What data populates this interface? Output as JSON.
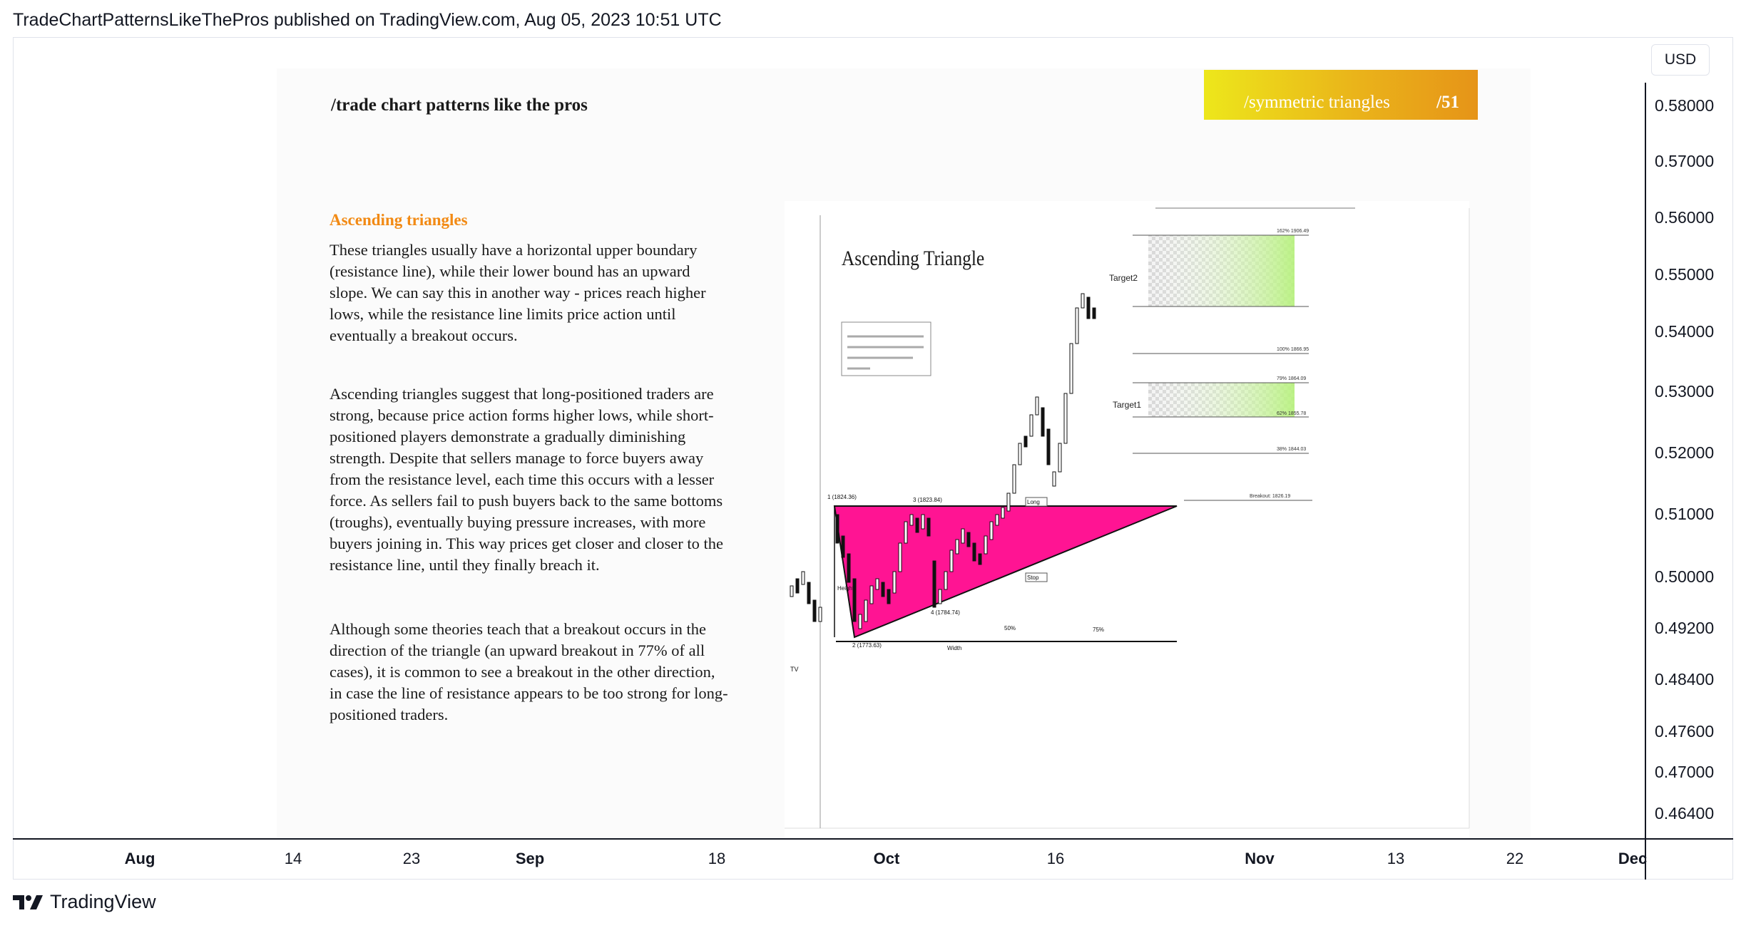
{
  "header": {
    "text": "TradeChartPatternsLikeThePros published on TradingView.com, Aug 05, 2023 10:51 UTC"
  },
  "toolbar": {
    "currency": "USD"
  },
  "price_axis": [
    "0.58000",
    "0.57000",
    "0.56000",
    "0.55000",
    "0.54000",
    "0.53000",
    "0.52000",
    "0.51000",
    "0.50000",
    "0.49200",
    "0.48400",
    "0.47600",
    "0.47000",
    "0.46400"
  ],
  "time_axis": [
    {
      "label": "Aug",
      "bold": true
    },
    {
      "label": "14",
      "bold": false
    },
    {
      "label": "23",
      "bold": false
    },
    {
      "label": "Sep",
      "bold": true
    },
    {
      "label": "18",
      "bold": false
    },
    {
      "label": "Oct",
      "bold": true
    },
    {
      "label": "16",
      "bold": false
    },
    {
      "label": "Nov",
      "bold": true
    },
    {
      "label": "13",
      "bold": false
    },
    {
      "label": "22",
      "bold": false
    },
    {
      "label": "Dec",
      "bold": true
    }
  ],
  "slide": {
    "title": "/trade chart patterns like the pros",
    "banner_text": "/symmetric triangles",
    "banner_num": "/51",
    "heading": "Ascending triangles",
    "paragraphs": [
      "These triangles usually have a horizontal upper boundary (resistance line), while their lower bound has an upward slope. We can say this in another way - prices reach higher lows, while the resistance line limits price action until eventually a breakout occurs.",
      "Ascending triangles suggest that long-positioned traders are strong, because price action forms higher lows, while short-positioned players demonstrate a gradually diminishing strength. Despite that sellers manage to force buyers away from the resistance level, each time this occurs with a lesser force. As sellers fail to push buyers back to the same bottoms (troughs), eventually buying pressure increases, with more buyers joining in. This way prices get closer and closer to the resistance line, until they finally breach it.",
      "Although some theories teach that a breakout occurs in the direction of the triangle (an upward breakout in 77% of all cases), it is common to see a breakout in the other direction, in case the line of resistance appears to be too strong for long-positioned traders."
    ],
    "inner_chart": {
      "title": "Ascending Triangle",
      "target2": "Target2",
      "target1": "Target1",
      "point1": "1 (1824.36)",
      "point2": "2 (1773.63)",
      "point3": "3 (1823.84)",
      "point4": "4 (1784.74)",
      "height": "Height",
      "width": "Width",
      "pct50": "50%",
      "pct75": "75%",
      "long": "Long",
      "stop": "Stop",
      "breakout": "Breakout: 1826.19",
      "fib162": "162% 1906.49",
      "fib100": "100% 1866.95",
      "fib79": "79% 1864.09",
      "fib62": "62% 1855.78",
      "fib38": "38% 1844.03",
      "tv": "TV",
      "colors": {
        "triangle": "#ff1493",
        "target_zone": "#b6f27a",
        "banner": "#eab41a",
        "heading": "#f28a14"
      }
    }
  },
  "footer": {
    "brand": "TradingView"
  }
}
